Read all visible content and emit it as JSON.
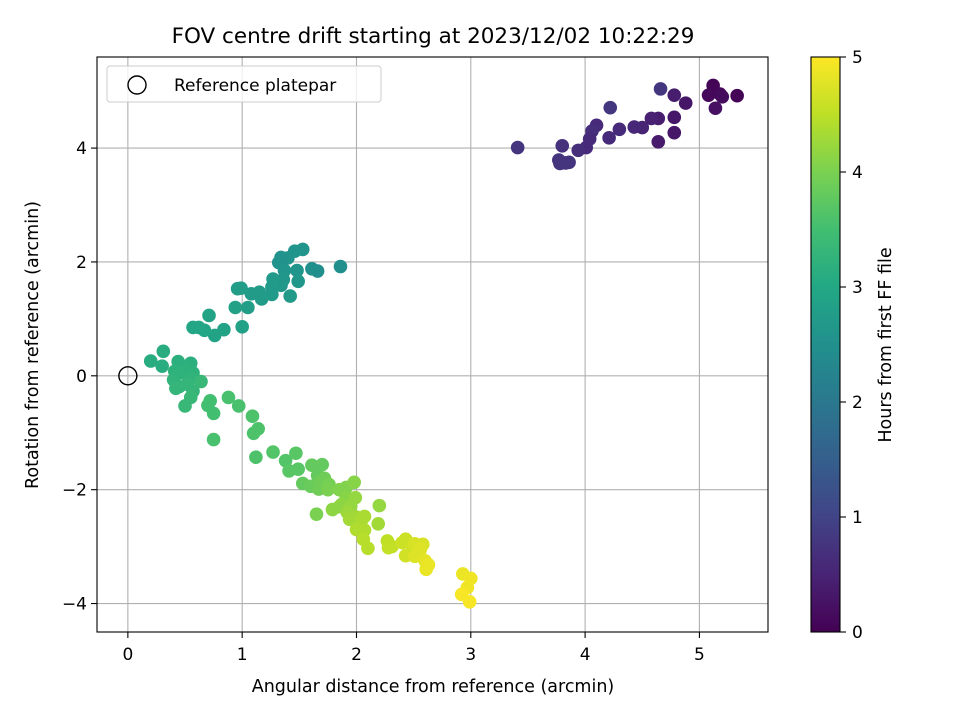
{
  "chart_data": {
    "type": "scatter",
    "title": "FOV centre drift starting at 2023/12/02 10:22:29",
    "xlabel": "Angular distance from reference (arcmin)",
    "ylabel": "Rotation from reference (arcmin)",
    "xlim": [
      -0.27,
      5.6
    ],
    "ylim": [
      -4.5,
      5.6
    ],
    "xticks": [
      0,
      1,
      2,
      3,
      4,
      5
    ],
    "yticks": [
      -4,
      -2,
      0,
      2,
      4
    ],
    "grid": true,
    "legend": {
      "placement": "top-left",
      "entries": [
        "Reference platepar"
      ]
    },
    "reference_point": {
      "label": "Reference platepar",
      "x": 0,
      "y": 0
    },
    "colorbar": {
      "label": "Hours from first FF file",
      "range": [
        0,
        5
      ],
      "ticks": [
        0,
        1,
        2,
        3,
        4,
        5
      ],
      "colormap": "viridis"
    },
    "points": [
      {
        "x": 5.33,
        "y": 4.92,
        "c": 0.05
      },
      {
        "x": 5.12,
        "y": 5.1,
        "c": 0.05
      },
      {
        "x": 5.18,
        "y": 4.95,
        "c": 0.1
      },
      {
        "x": 5.08,
        "y": 4.93,
        "c": 0.1
      },
      {
        "x": 5.2,
        "y": 4.9,
        "c": 0.15
      },
      {
        "x": 5.14,
        "y": 4.7,
        "c": 0.2
      },
      {
        "x": 4.88,
        "y": 4.79,
        "c": 0.3
      },
      {
        "x": 4.78,
        "y": 4.93,
        "c": 0.4
      },
      {
        "x": 4.66,
        "y": 5.04,
        "c": 0.8
      },
      {
        "x": 4.78,
        "y": 4.54,
        "c": 0.3
      },
      {
        "x": 4.64,
        "y": 4.52,
        "c": 0.4
      },
      {
        "x": 4.58,
        "y": 4.52,
        "c": 0.45
      },
      {
        "x": 4.78,
        "y": 4.27,
        "c": 0.3
      },
      {
        "x": 4.64,
        "y": 4.11,
        "c": 0.35
      },
      {
        "x": 4.5,
        "y": 4.36,
        "c": 0.5
      },
      {
        "x": 4.43,
        "y": 4.37,
        "c": 0.55
      },
      {
        "x": 4.3,
        "y": 4.33,
        "c": 0.6
      },
      {
        "x": 4.22,
        "y": 4.71,
        "c": 0.8
      },
      {
        "x": 4.21,
        "y": 4.18,
        "c": 0.6
      },
      {
        "x": 4.1,
        "y": 4.4,
        "c": 0.6
      },
      {
        "x": 4.06,
        "y": 4.3,
        "c": 0.65
      },
      {
        "x": 4.04,
        "y": 4.16,
        "c": 0.6
      },
      {
        "x": 4.01,
        "y": 4.01,
        "c": 0.6
      },
      {
        "x": 3.94,
        "y": 3.96,
        "c": 0.65
      },
      {
        "x": 3.83,
        "y": 3.74,
        "c": 0.7
      },
      {
        "x": 3.8,
        "y": 4.04,
        "c": 0.7
      },
      {
        "x": 3.78,
        "y": 3.73,
        "c": 0.75
      },
      {
        "x": 3.77,
        "y": 3.79,
        "c": 0.75
      },
      {
        "x": 3.86,
        "y": 3.75,
        "c": 0.75
      },
      {
        "x": 3.41,
        "y": 4.01,
        "c": 0.75
      },
      {
        "x": 1.86,
        "y": 1.92,
        "c": 2.5
      },
      {
        "x": 1.66,
        "y": 1.84,
        "c": 2.45
      },
      {
        "x": 1.61,
        "y": 1.88,
        "c": 2.5
      },
      {
        "x": 1.53,
        "y": 2.22,
        "c": 2.6
      },
      {
        "x": 1.46,
        "y": 2.19,
        "c": 2.6
      },
      {
        "x": 1.4,
        "y": 2.07,
        "c": 2.6
      },
      {
        "x": 1.34,
        "y": 2.08,
        "c": 2.55
      },
      {
        "x": 1.32,
        "y": 1.99,
        "c": 2.55
      },
      {
        "x": 1.37,
        "y": 1.85,
        "c": 2.6
      },
      {
        "x": 1.48,
        "y": 1.85,
        "c": 2.6
      },
      {
        "x": 1.49,
        "y": 1.66,
        "c": 2.65
      },
      {
        "x": 1.42,
        "y": 1.4,
        "c": 2.7
      },
      {
        "x": 1.36,
        "y": 1.69,
        "c": 2.65
      },
      {
        "x": 1.34,
        "y": 1.59,
        "c": 2.65
      },
      {
        "x": 1.27,
        "y": 1.7,
        "c": 2.7
      },
      {
        "x": 1.26,
        "y": 1.56,
        "c": 2.7
      },
      {
        "x": 1.26,
        "y": 1.43,
        "c": 2.7
      },
      {
        "x": 1.17,
        "y": 1.35,
        "c": 2.75
      },
      {
        "x": 1.15,
        "y": 1.47,
        "c": 2.75
      },
      {
        "x": 1.08,
        "y": 1.44,
        "c": 2.75
      },
      {
        "x": 1.05,
        "y": 1.2,
        "c": 2.8
      },
      {
        "x": 0.99,
        "y": 1.54,
        "c": 2.8
      },
      {
        "x": 0.96,
        "y": 1.53,
        "c": 2.8
      },
      {
        "x": 0.94,
        "y": 1.2,
        "c": 2.85
      },
      {
        "x": 1.0,
        "y": 0.86,
        "c": 2.85
      },
      {
        "x": 0.84,
        "y": 0.81,
        "c": 2.9
      },
      {
        "x": 0.71,
        "y": 1.06,
        "c": 2.9
      },
      {
        "x": 0.76,
        "y": 0.71,
        "c": 2.9
      },
      {
        "x": 0.67,
        "y": 0.8,
        "c": 2.95
      },
      {
        "x": 0.62,
        "y": 0.85,
        "c": 2.95
      },
      {
        "x": 0.57,
        "y": 0.85,
        "c": 2.95
      },
      {
        "x": 0.31,
        "y": 0.43,
        "c": 3.1
      },
      {
        "x": 0.2,
        "y": 0.26,
        "c": 3.1
      },
      {
        "x": 0.3,
        "y": 0.17,
        "c": 3.1
      },
      {
        "x": 0.44,
        "y": 0.25,
        "c": 3.15
      },
      {
        "x": 0.55,
        "y": 0.22,
        "c": 3.15
      },
      {
        "x": 0.51,
        "y": 0.1,
        "c": 3.2
      },
      {
        "x": 0.41,
        "y": 0.08,
        "c": 3.2
      },
      {
        "x": 0.47,
        "y": 0.05,
        "c": 3.2
      },
      {
        "x": 0.57,
        "y": 0.05,
        "c": 3.2
      },
      {
        "x": 0.55,
        "y": -0.05,
        "c": 3.25
      },
      {
        "x": 0.4,
        "y": -0.07,
        "c": 3.25
      },
      {
        "x": 0.45,
        "y": -0.19,
        "c": 3.25
      },
      {
        "x": 0.52,
        "y": -0.15,
        "c": 3.3
      },
      {
        "x": 0.57,
        "y": -0.27,
        "c": 3.3
      },
      {
        "x": 0.42,
        "y": -0.22,
        "c": 3.3
      },
      {
        "x": 0.55,
        "y": -0.38,
        "c": 3.35
      },
      {
        "x": 0.64,
        "y": -0.1,
        "c": 3.35
      },
      {
        "x": 0.5,
        "y": -0.53,
        "c": 3.35
      },
      {
        "x": 0.7,
        "y": -0.52,
        "c": 3.5
      },
      {
        "x": 0.72,
        "y": -0.44,
        "c": 3.5
      },
      {
        "x": 0.75,
        "y": -0.66,
        "c": 3.5
      },
      {
        "x": 0.88,
        "y": -0.38,
        "c": 3.55
      },
      {
        "x": 0.97,
        "y": -0.53,
        "c": 3.55
      },
      {
        "x": 0.75,
        "y": -1.12,
        "c": 3.55
      },
      {
        "x": 1.09,
        "y": -0.71,
        "c": 3.6
      },
      {
        "x": 1.14,
        "y": -0.93,
        "c": 3.6
      },
      {
        "x": 1.1,
        "y": -1.01,
        "c": 3.6
      },
      {
        "x": 1.12,
        "y": -1.43,
        "c": 3.6
      },
      {
        "x": 1.27,
        "y": -1.34,
        "c": 3.65
      },
      {
        "x": 1.38,
        "y": -1.49,
        "c": 3.65
      },
      {
        "x": 1.47,
        "y": -1.36,
        "c": 3.7
      },
      {
        "x": 1.41,
        "y": -1.67,
        "c": 3.7
      },
      {
        "x": 1.49,
        "y": -1.64,
        "c": 3.7
      },
      {
        "x": 1.53,
        "y": -1.89,
        "c": 3.8
      },
      {
        "x": 1.6,
        "y": -1.94,
        "c": 3.85
      },
      {
        "x": 1.61,
        "y": -1.57,
        "c": 3.8
      },
      {
        "x": 1.66,
        "y": -1.75,
        "c": 3.8
      },
      {
        "x": 1.7,
        "y": -1.56,
        "c": 3.8
      },
      {
        "x": 1.72,
        "y": -1.8,
        "c": 3.9
      },
      {
        "x": 1.68,
        "y": -1.87,
        "c": 3.9
      },
      {
        "x": 1.67,
        "y": -1.99,
        "c": 3.9
      },
      {
        "x": 1.76,
        "y": -1.91,
        "c": 3.95
      },
      {
        "x": 1.75,
        "y": -2.0,
        "c": 4.0
      },
      {
        "x": 1.65,
        "y": -2.43,
        "c": 4.0
      },
      {
        "x": 1.85,
        "y": -2.0,
        "c": 4.05
      },
      {
        "x": 1.91,
        "y": -1.96,
        "c": 4.05
      },
      {
        "x": 1.98,
        "y": -1.87,
        "c": 4.1
      },
      {
        "x": 1.91,
        "y": -2.14,
        "c": 4.1
      },
      {
        "x": 1.87,
        "y": -2.26,
        "c": 4.15
      },
      {
        "x": 1.85,
        "y": -2.3,
        "c": 4.15
      },
      {
        "x": 1.79,
        "y": -2.35,
        "c": 4.15
      },
      {
        "x": 1.95,
        "y": -2.29,
        "c": 4.2
      },
      {
        "x": 1.99,
        "y": -2.14,
        "c": 4.2
      },
      {
        "x": 1.92,
        "y": -2.4,
        "c": 4.25
      },
      {
        "x": 1.96,
        "y": -2.45,
        "c": 4.25
      },
      {
        "x": 2.0,
        "y": -2.48,
        "c": 4.3
      },
      {
        "x": 1.94,
        "y": -2.52,
        "c": 4.3
      },
      {
        "x": 2.04,
        "y": -2.56,
        "c": 4.35
      },
      {
        "x": 2.07,
        "y": -2.47,
        "c": 4.35
      },
      {
        "x": 2.0,
        "y": -2.7,
        "c": 4.4
      },
      {
        "x": 2.07,
        "y": -2.71,
        "c": 4.4
      },
      {
        "x": 2.06,
        "y": -2.87,
        "c": 4.45
      },
      {
        "x": 2.1,
        "y": -3.03,
        "c": 4.45
      },
      {
        "x": 2.19,
        "y": -2.6,
        "c": 4.3
      },
      {
        "x": 2.2,
        "y": -2.28,
        "c": 4.2
      },
      {
        "x": 2.27,
        "y": -2.9,
        "c": 4.5
      },
      {
        "x": 2.28,
        "y": -3.02,
        "c": 4.55
      },
      {
        "x": 2.31,
        "y": -3.0,
        "c": 4.55
      },
      {
        "x": 2.4,
        "y": -2.93,
        "c": 4.6
      },
      {
        "x": 2.43,
        "y": -2.87,
        "c": 4.6
      },
      {
        "x": 2.43,
        "y": -3.16,
        "c": 4.65
      },
      {
        "x": 2.49,
        "y": -3.0,
        "c": 4.65
      },
      {
        "x": 2.51,
        "y": -2.95,
        "c": 4.7
      },
      {
        "x": 2.51,
        "y": -3.17,
        "c": 4.75
      },
      {
        "x": 2.55,
        "y": -3.11,
        "c": 4.75
      },
      {
        "x": 2.58,
        "y": -2.96,
        "c": 4.7
      },
      {
        "x": 2.56,
        "y": -3.04,
        "c": 4.75
      },
      {
        "x": 2.6,
        "y": -3.25,
        "c": 4.8
      },
      {
        "x": 2.63,
        "y": -3.32,
        "c": 4.85
      },
      {
        "x": 2.61,
        "y": -3.4,
        "c": 4.85
      },
      {
        "x": 2.93,
        "y": -3.48,
        "c": 4.85
      },
      {
        "x": 3.0,
        "y": -3.56,
        "c": 4.9
      },
      {
        "x": 2.97,
        "y": -3.72,
        "c": 4.9
      },
      {
        "x": 2.92,
        "y": -3.84,
        "c": 4.95
      },
      {
        "x": 2.99,
        "y": -3.97,
        "c": 4.95
      }
    ]
  }
}
